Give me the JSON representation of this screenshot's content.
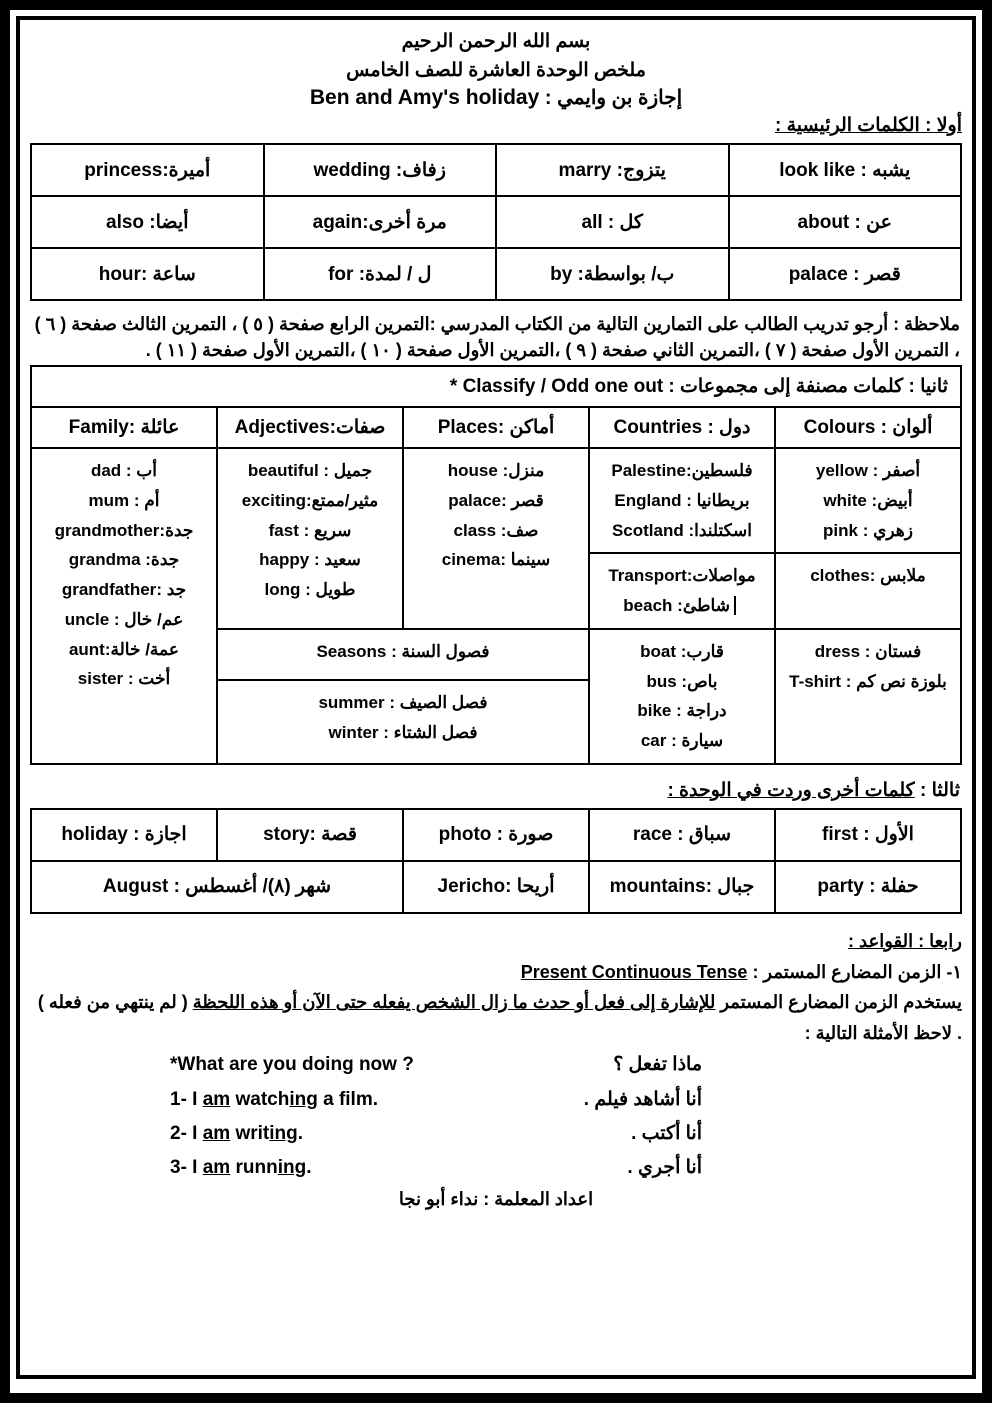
{
  "header": {
    "bismillah": "بسم الله الرحمن الرحيم",
    "summary": "ملخص الوحدة العاشرة للصف الخامس",
    "holiday_ar": "إجازة بن وايمي : ",
    "holiday_en": "Ben and Amy's holiday"
  },
  "sec1_label": "أولا : الكلمات الرئيسية :",
  "vocab": {
    "r1c1": "يشبه : look like",
    "r1c2": "يتزوج: marry",
    "r1c3": "زفاف: wedding",
    "r1c4": "أميرة:princess",
    "r2c1": "عن :      about",
    "r2c2": "كل : all",
    "r2c3": "مرة أخرى:again",
    "r2c4": "أيضا: also",
    "r3c1": "قصر :   palace",
    "r3c2": "ب/ بواسطة: by",
    "r3c3": "ل / لمدة:     for",
    "r3c4": "ساعة :hour"
  },
  "note_text": "ملاحظة : أرجو تدريب الطالب على التمارين التالية من الكتاب المدرسي :التمرين الرابع صفحة ( ٥ ) ، التمرين الثالث صفحة ( ٦ ) ، التمرين الأول صفحة ( ٧ ) ،التمرين الثاني صفحة ( ٩ ) ،التمرين الأول صفحة ( ١٠ ) ،التمرين الأول صفحة ( ١١ ) .",
  "sec2_label": "ثانيا : كلمات مصنفة إلى مجموعات :   Classify / Odd one out *",
  "classify": {
    "h1": "ألوان :   Colours",
    "h2": "دول : Countries",
    "h3": "أماكن :Places",
    "h4": "صفات:Adjectives",
    "h5": "عائلة :Family",
    "c1": "أصفر : yellow\nأبيض:  white\nزهري :  pink",
    "c2": "فلسطين:Palestine\nبريطانيا : England\nاسكتلندا: Scotland",
    "c3": "منزل: house\nقصر :palace\nصف:  class\nسينما :cinema",
    "c4": "جميل :   beautiful\nمثير/ممتع:exciting\nسريع :    fast\nسعيد :   happy\nطويل :   long",
    "c5": "أب : dad\nأم : mum\nجدة:grandmother\nجدة:   grandma\nجد :grandfather\nعم/ خال : uncle\nعمة/ خالة:aunt\nأخت : sister",
    "clothes": "ملابس :clothes",
    "transport": "مواصلات:Transport",
    "beach": "شاطئ: beach",
    "dress": "فستان :  dress\nبلوزة نص كم : T-shirt",
    "boat": "قارب: boat\nباص:     bus\nدراجة :  bike\nسيارة :   car",
    "seasons_h": "فصول السنة :   Seasons",
    "seasons": "فصل الصيف :   summer\nفصل الشتاء :    winter"
  },
  "sec3_label_a": "ثالثا : ",
  "sec3_label_b": "كلمات أخرى وردت في الوحدة :",
  "extra": {
    "r1c1": "الأول :  first",
    "r1c2": "سباق : race",
    "r1c3": "صورة : photo",
    "r1c4": "قصة :story",
    "r1c5": "اجازة : holiday",
    "r2c1": "حفلة : party",
    "r2c2": "جبال :mountains",
    "r2c3": "أريحا :Jericho",
    "r2c4": "شهر (٨)/ أغسطس : August"
  },
  "sec4_label": "رابعا : القواعد :",
  "grammar": {
    "title_ar": "١- الزمن المضارع المستمر :",
    "title_en": "Present Continuous Tense",
    "rule": "يستخدم الزمن المضارع المستمر للإشارة إلى فعل أو حدث ما زال الشخص يفعله حتى الآن أو هذه اللحظة ( لم ينتهي من فعله )  . لاحظ الأمثلة التالية :",
    "q_en": "*What are you doing now ?",
    "q_ar": "ماذا تفعل ؟",
    "e1_en": "1- I am watching a film.",
    "e1_ar": "أنا أشاهد فيلم .",
    "e2_en": "2- I am writing.",
    "e2_ar": "أنا أكتب .",
    "e3_en": "3- I am running.",
    "e3_ar": "أنا أجري ."
  },
  "footer": "اعداد المعلمة : نداء أبو نجا"
}
